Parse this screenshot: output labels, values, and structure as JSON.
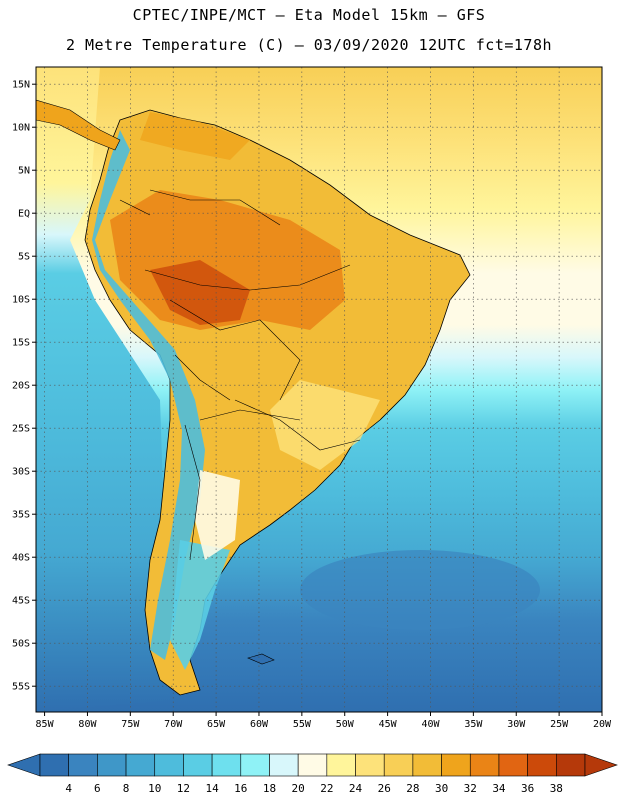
{
  "header": {
    "line1": "CPTEC/INPE/MCT –  Eta Model 15km – GFS",
    "line2": "2 Metre Temperature (C) – 03/09/2020 12UTC fct=178h"
  },
  "map": {
    "lat_ticks": [
      "15N",
      "10N",
      "5N",
      "EQ",
      "5S",
      "10S",
      "15S",
      "20S",
      "25S",
      "30S",
      "35S",
      "40S",
      "45S",
      "50S",
      "55S"
    ],
    "lat_values": [
      15,
      10,
      5,
      0,
      -5,
      -10,
      -15,
      -20,
      -25,
      -30,
      -35,
      -40,
      -45,
      -50,
      -55
    ],
    "lon_ticks": [
      "85W",
      "80W",
      "75W",
      "70W",
      "65W",
      "60W",
      "55W",
      "50W",
      "45W",
      "40W",
      "35W",
      "30W",
      "25W",
      "20W"
    ],
    "lon_values": [
      -85,
      -80,
      -75,
      -70,
      -65,
      -60,
      -55,
      -50,
      -45,
      -40,
      -35,
      -30,
      -25,
      -20
    ],
    "lat_range": [
      -58,
      17
    ],
    "lon_range": [
      -86,
      -20
    ],
    "grid": "dotted"
  },
  "colorbar": {
    "labels": [
      "4",
      "6",
      "8",
      "10",
      "12",
      "14",
      "16",
      "18",
      "20",
      "22",
      "24",
      "26",
      "28",
      "30",
      "32",
      "34",
      "36",
      "38"
    ],
    "colors": [
      "#2f6fb0",
      "#3a84bf",
      "#3f97c8",
      "#45a9d2",
      "#4ebcdc",
      "#5acde4",
      "#6ee0ee",
      "#8ff2f6",
      "#d8f7fb",
      "#fffbe6",
      "#fff59b",
      "#fde27a",
      "#f8cf56",
      "#f2bc37",
      "#efa41c",
      "#ea8416",
      "#e16512",
      "#cc4a0a",
      "#b5390a"
    ]
  }
}
